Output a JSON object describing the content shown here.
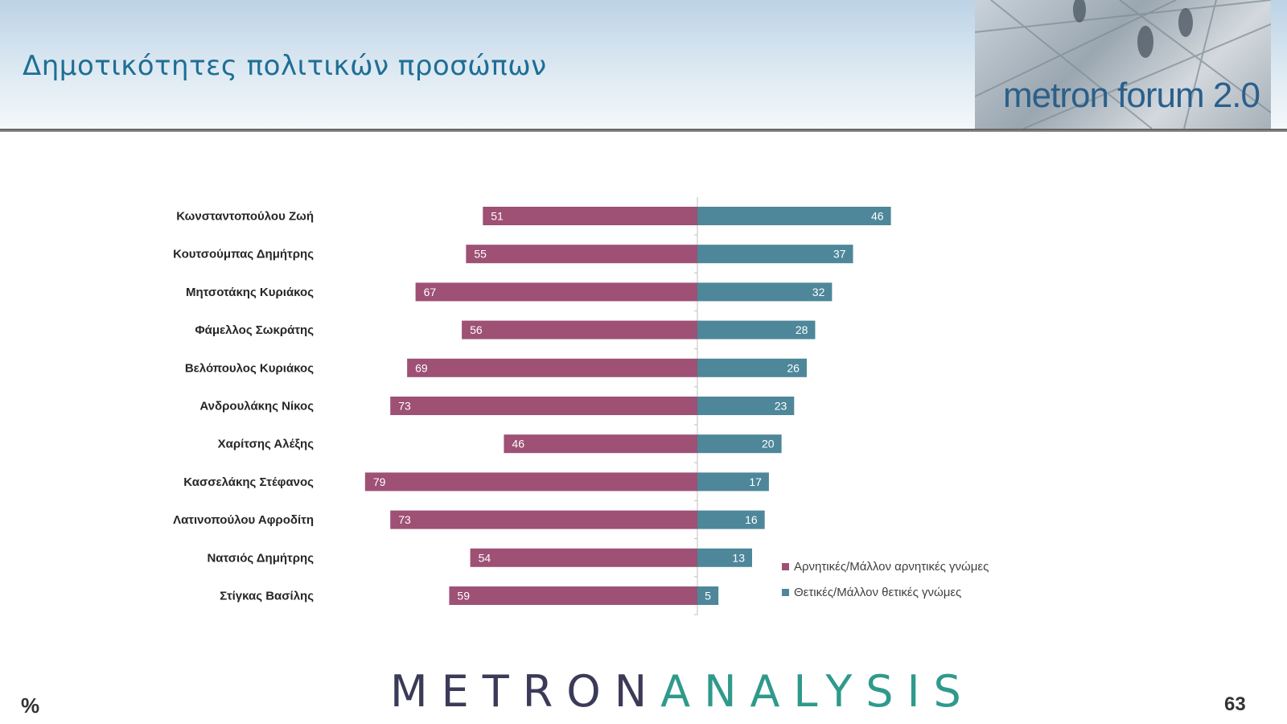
{
  "header": {
    "title": "Δημοτικότητες πολιτικών προσώπων",
    "brand": "metron forum 2.0"
  },
  "footer": {
    "logo_part1": "METRON",
    "logo_part2": "ANALYSIS",
    "unit": "%",
    "page_number": "63"
  },
  "colors": {
    "negative": "#9e5075",
    "positive": "#4d8799",
    "title": "#1e6e95"
  },
  "chart_data": {
    "type": "bar",
    "orientation": "horizontal-diverging",
    "categories": [
      "Κωνσταντοπούλου Ζωή",
      "Κουτσούμπας Δημήτρης",
      "Μητσοτάκης Κυριάκος",
      "Φάμελλος Σωκράτης",
      "Βελόπουλος Κυριάκος",
      "Ανδρουλάκης Νίκος",
      "Χαρίτσης Αλέξης",
      "Κασσελάκης Στέφανος",
      "Λατινοπούλου Αφροδίτη",
      "Νατσιός Δημήτρης",
      "Στίγκας Βασίλης"
    ],
    "series": [
      {
        "name": "Αρνητικές/Μάλλον αρνητικές γνώμες",
        "color": "#9e5075",
        "values": [
          51,
          55,
          67,
          56,
          69,
          73,
          46,
          79,
          73,
          54,
          59
        ]
      },
      {
        "name": "Θετικές/Μάλλον θετικές γνώμες",
        "color": "#4d8799",
        "values": [
          46,
          37,
          32,
          28,
          26,
          23,
          20,
          17,
          16,
          13,
          5
        ]
      }
    ],
    "legend_position": "bottom-right",
    "grid": false
  }
}
